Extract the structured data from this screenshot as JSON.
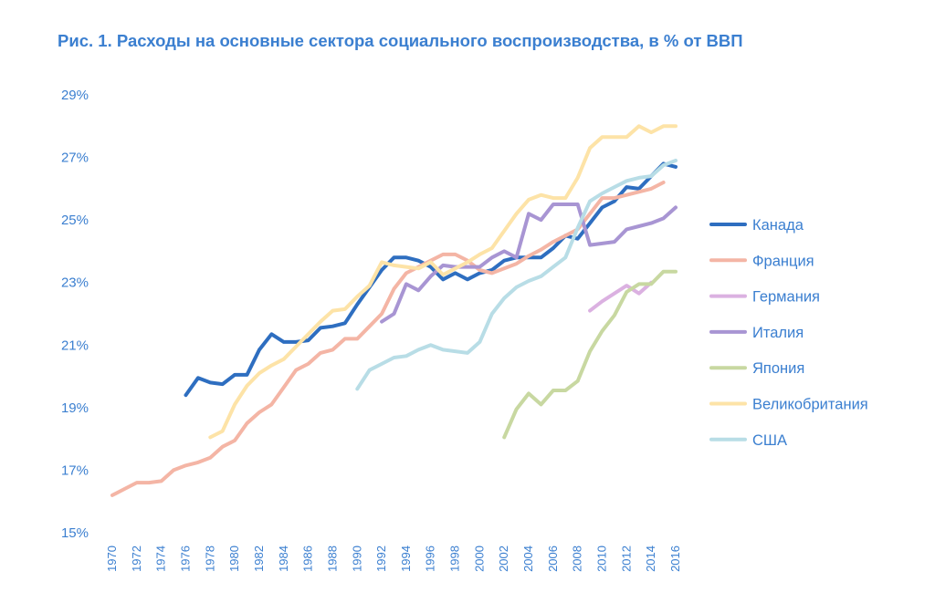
{
  "chart_data": {
    "type": "line",
    "title": "Рис. 1. Расходы на основные сектора социального воспроизводства, в % от ВВП",
    "xlabel": "",
    "ylabel": "",
    "ylim": [
      15,
      29
    ],
    "yticks": [
      15,
      17,
      19,
      21,
      23,
      25,
      27,
      29
    ],
    "ytick_labels": [
      "15%",
      "17%",
      "19%",
      "21%",
      "23%",
      "25%",
      "27%",
      "29%"
    ],
    "xlim": [
      1970,
      2016
    ],
    "xticks": [
      1970,
      1972,
      1974,
      1976,
      1978,
      1980,
      1982,
      1984,
      1986,
      1988,
      1990,
      1992,
      1994,
      1996,
      1998,
      2000,
      2002,
      2004,
      2006,
      2008,
      2010,
      2012,
      2014,
      2016
    ],
    "grid": false,
    "legend_position": "right",
    "series": [
      {
        "name": "Канада",
        "color": "#2e6ec0",
        "x": [
          1976,
          1977,
          1978,
          1979,
          1980,
          1981,
          1982,
          1983,
          1984,
          1985,
          1986,
          1987,
          1988,
          1989,
          1990,
          1991,
          1992,
          1993,
          1994,
          1995,
          1996,
          1997,
          1998,
          1999,
          2000,
          2001,
          2002,
          2003,
          2004,
          2005,
          2006,
          2007,
          2008,
          2009,
          2010,
          2011,
          2012,
          2013,
          2014,
          2015,
          2016
        ],
        "y": [
          19.4,
          19.95,
          19.8,
          19.75,
          20.05,
          20.05,
          20.85,
          21.35,
          21.1,
          21.1,
          21.15,
          21.55,
          21.6,
          21.7,
          22.3,
          22.85,
          23.4,
          23.8,
          23.8,
          23.7,
          23.5,
          23.1,
          23.3,
          23.1,
          23.3,
          23.4,
          23.7,
          23.8,
          23.8,
          23.8,
          24.1,
          24.5,
          24.4,
          24.9,
          25.4,
          25.6,
          26.05,
          26.0,
          26.4,
          26.8,
          26.7
        ]
      },
      {
        "name": "Франция",
        "color": "#f4b5a5",
        "x": [
          1970,
          1971,
          1972,
          1973,
          1974,
          1975,
          1976,
          1977,
          1978,
          1979,
          1980,
          1981,
          1982,
          1983,
          1984,
          1985,
          1986,
          1987,
          1988,
          1989,
          1990,
          1991,
          1992,
          1993,
          1994,
          1995,
          1996,
          1997,
          1998,
          1999,
          2000,
          2001,
          2002,
          2003,
          2004,
          2005,
          2006,
          2007,
          2008,
          2009,
          2010,
          2011,
          2012,
          2013,
          2014,
          2015
        ],
        "y": [
          16.2,
          16.4,
          16.6,
          16.6,
          16.65,
          17.0,
          17.15,
          17.25,
          17.4,
          17.75,
          17.95,
          18.5,
          18.85,
          19.1,
          19.65,
          20.2,
          20.4,
          20.75,
          20.85,
          21.2,
          21.2,
          21.6,
          22.0,
          22.8,
          23.3,
          23.5,
          23.7,
          23.9,
          23.9,
          23.7,
          23.4,
          23.3,
          23.45,
          23.6,
          23.85,
          24.05,
          24.3,
          24.5,
          24.7,
          25.2,
          25.7,
          25.7,
          25.8,
          25.9,
          26.0,
          26.2
        ]
      },
      {
        "name": "Германия",
        "color": "#dbb1e1",
        "x": [
          2009,
          2010,
          2011,
          2012,
          2013,
          2014
        ],
        "y": [
          22.1,
          22.4,
          22.65,
          22.9,
          22.65,
          23.0
        ]
      },
      {
        "name": "Италия",
        "color": "#a895d3",
        "x": [
          1992,
          1993,
          1994,
          1995,
          1996,
          1997,
          1998,
          1999,
          2000,
          2001,
          2002,
          2003,
          2004,
          2005,
          2006,
          2007,
          2008,
          2009,
          2010,
          2011,
          2012,
          2013,
          2014,
          2015,
          2016
        ],
        "y": [
          21.75,
          22.0,
          22.95,
          22.75,
          23.2,
          23.55,
          23.5,
          23.5,
          23.5,
          23.8,
          24.0,
          23.8,
          25.2,
          25.0,
          25.5,
          25.5,
          25.5,
          24.2,
          24.25,
          24.3,
          24.7,
          24.8,
          24.9,
          25.05,
          25.4
        ]
      },
      {
        "name": "Япония",
        "color": "#c8d8a1",
        "x": [
          2002,
          2003,
          2004,
          2005,
          2006,
          2007,
          2008,
          2009,
          2010,
          2011,
          2012,
          2013,
          2014,
          2015,
          2016
        ],
        "y": [
          18.05,
          18.95,
          19.45,
          19.1,
          19.55,
          19.55,
          19.85,
          20.8,
          21.45,
          21.95,
          22.7,
          22.95,
          22.95,
          23.35,
          23.35
        ]
      },
      {
        "name": "Великобритания",
        "color": "#fde3a7",
        "x": [
          1978,
          1979,
          1980,
          1981,
          1982,
          1983,
          1984,
          1985,
          1986,
          1987,
          1988,
          1989,
          1990,
          1991,
          1992,
          1993,
          1994,
          1995,
          1996,
          1997,
          1998,
          1999,
          2000,
          2001,
          2002,
          2003,
          2004,
          2005,
          2006,
          2007,
          2008,
          2009,
          2010,
          2011,
          2012,
          2013,
          2014,
          2015,
          2016
        ],
        "y": [
          18.05,
          18.25,
          19.1,
          19.7,
          20.1,
          20.35,
          20.55,
          20.95,
          21.35,
          21.75,
          22.1,
          22.15,
          22.55,
          22.9,
          23.65,
          23.55,
          23.5,
          23.45,
          23.65,
          23.25,
          23.45,
          23.65,
          23.9,
          24.1,
          24.65,
          25.2,
          25.65,
          25.8,
          25.7,
          25.7,
          26.35,
          27.3,
          27.65,
          27.65,
          27.65,
          28.0,
          27.8,
          28.0,
          28.0
        ]
      },
      {
        "name": "США",
        "color": "#b8dde6",
        "x": [
          1990,
          1991,
          1992,
          1993,
          1994,
          1995,
          1996,
          1997,
          1998,
          1999,
          2000,
          2001,
          2002,
          2003,
          2004,
          2005,
          2006,
          2007,
          2008,
          2009,
          2010,
          2011,
          2012,
          2013,
          2014,
          2015,
          2016
        ],
        "y": [
          19.6,
          20.2,
          20.4,
          20.6,
          20.65,
          20.85,
          21.0,
          20.85,
          20.8,
          20.75,
          21.1,
          22.0,
          22.5,
          22.85,
          23.05,
          23.2,
          23.5,
          23.8,
          24.75,
          25.6,
          25.85,
          26.05,
          26.25,
          26.35,
          26.4,
          26.75,
          26.9
        ]
      }
    ]
  }
}
